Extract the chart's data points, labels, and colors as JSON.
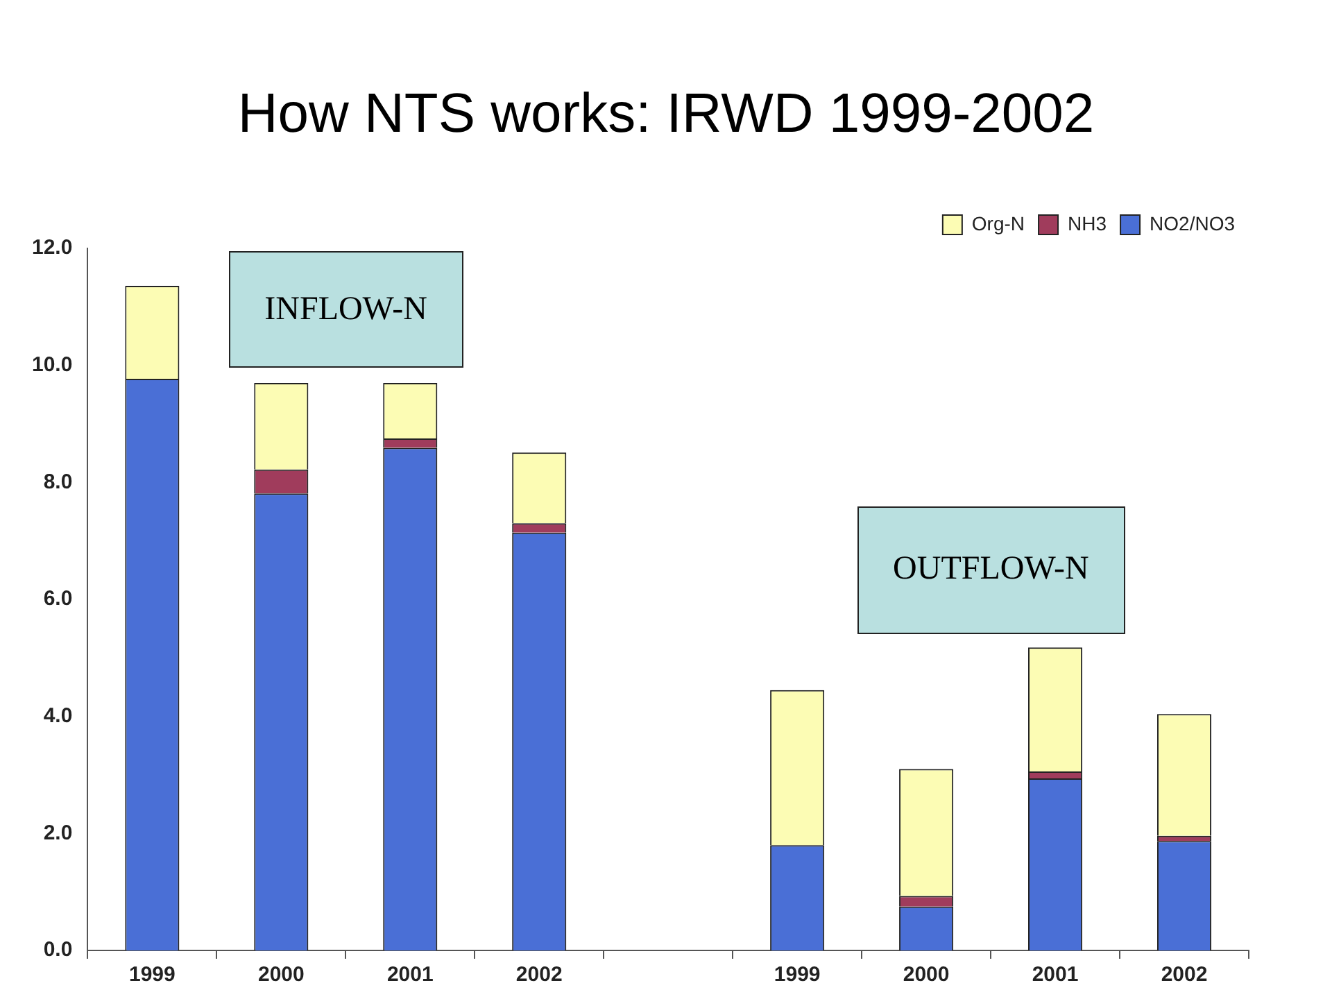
{
  "chart_data": {
    "type": "bar",
    "title": "How NTS works: IRWD 1999-2002",
    "categories": [
      "1999",
      "2000",
      "2001",
      "2002",
      null,
      "1999",
      "2000",
      "2001",
      "2002"
    ],
    "series": [
      {
        "name": "NO2/NO3",
        "color": "#4a6fd6",
        "values": [
          9.77,
          7.81,
          8.59,
          7.14,
          null,
          1.8,
          0.75,
          2.94,
          1.87
        ]
      },
      {
        "name": "NH3",
        "color": "#a03c5c",
        "values": [
          0,
          0.41,
          0.16,
          0.16,
          null,
          0,
          0.18,
          0.12,
          0.09
        ]
      },
      {
        "name": "Org-N",
        "color": "#fcfcb4",
        "values": [
          1.59,
          1.48,
          0.95,
          1.21,
          null,
          2.65,
          2.17,
          2.12,
          2.08
        ]
      }
    ],
    "stacked": true,
    "ylim": [
      0,
      12
    ],
    "yticks": [
      {
        "value": 0,
        "label": "0.0"
      },
      {
        "value": 2,
        "label": "2.0"
      },
      {
        "value": 4,
        "label": "4.0"
      },
      {
        "value": 6,
        "label": "6.0"
      },
      {
        "value": 8,
        "label": "8.0"
      },
      {
        "value": 10,
        "label": "10.0"
      },
      {
        "value": 12,
        "label": "12.0"
      }
    ],
    "grid": false,
    "legend": "top right",
    "annotations": [
      "INFLOW-N",
      "OUTFLOW-N"
    ]
  }
}
